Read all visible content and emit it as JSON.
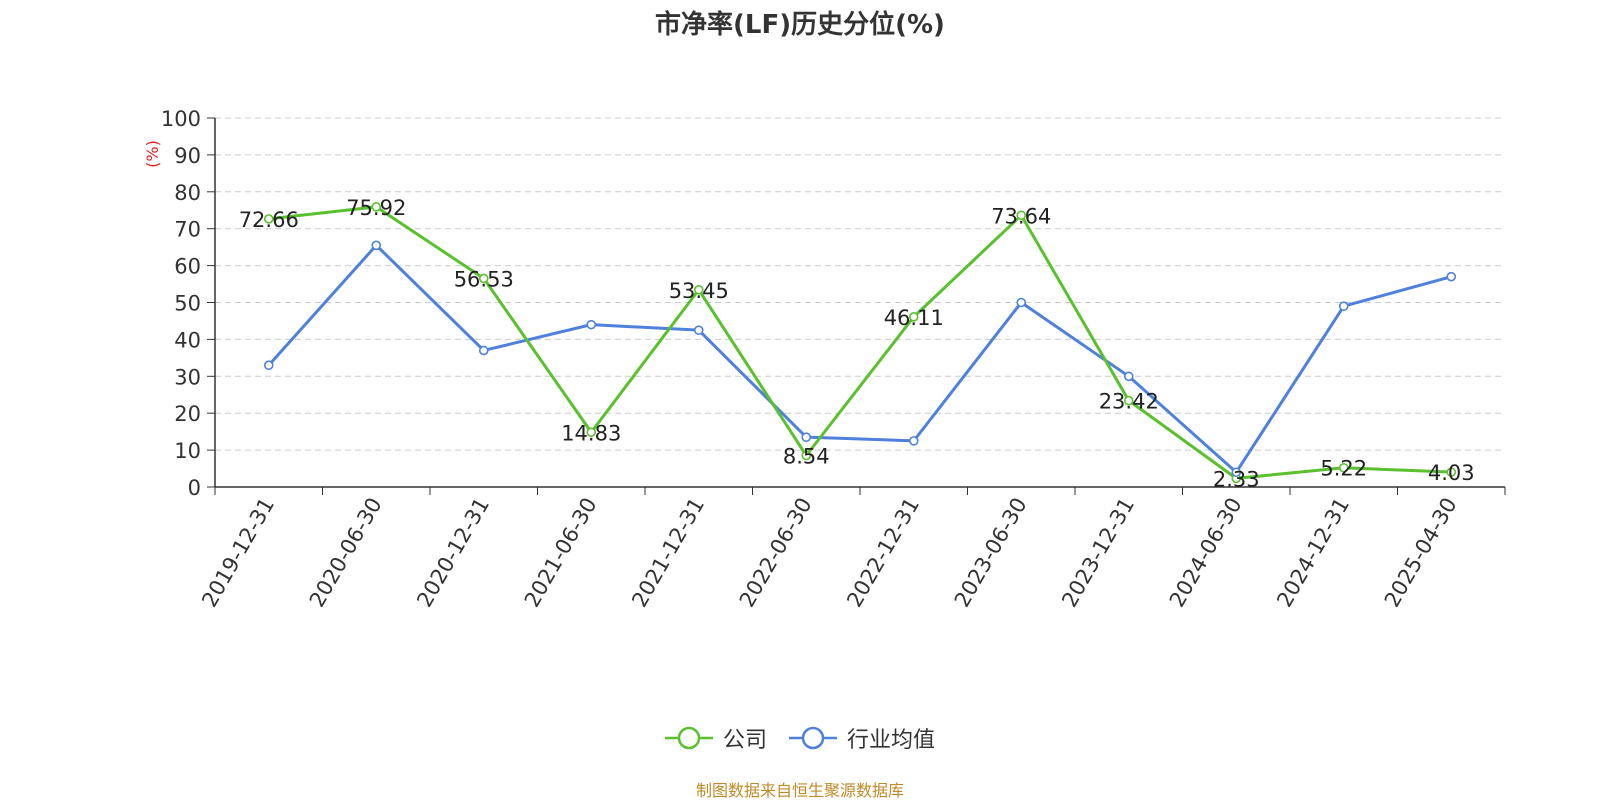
{
  "title": "市净率(LF)历史分位(%)",
  "source": "制图数据来自恒生聚源数据库",
  "chart_data": {
    "type": "line",
    "title": "市净率(LF)历史分位(%)",
    "ylabel": "(%)",
    "ylim": [
      0,
      100
    ],
    "yticks": [
      0,
      10,
      20,
      30,
      40,
      50,
      60,
      70,
      80,
      90,
      100
    ],
    "grid": true,
    "legend_position": "bottom",
    "categories": [
      "2019-12-31",
      "2020-06-30",
      "2020-12-31",
      "2021-06-30",
      "2021-12-31",
      "2022-06-30",
      "2022-12-31",
      "2023-06-30",
      "2023-12-31",
      "2024-06-30",
      "2024-12-31",
      "2025-04-30"
    ],
    "series": [
      {
        "name": "公司",
        "color": "#5ac02e",
        "labels": true,
        "values": [
          72.66,
          75.92,
          56.53,
          14.83,
          53.45,
          8.54,
          46.11,
          73.64,
          23.42,
          2.33,
          5.22,
          4.03
        ]
      },
      {
        "name": "行业均值",
        "color": "#4e80dc",
        "labels": false,
        "values": [
          33,
          65.5,
          37,
          44,
          42.5,
          13.5,
          12.5,
          50,
          30,
          4,
          49,
          57
        ]
      }
    ]
  }
}
